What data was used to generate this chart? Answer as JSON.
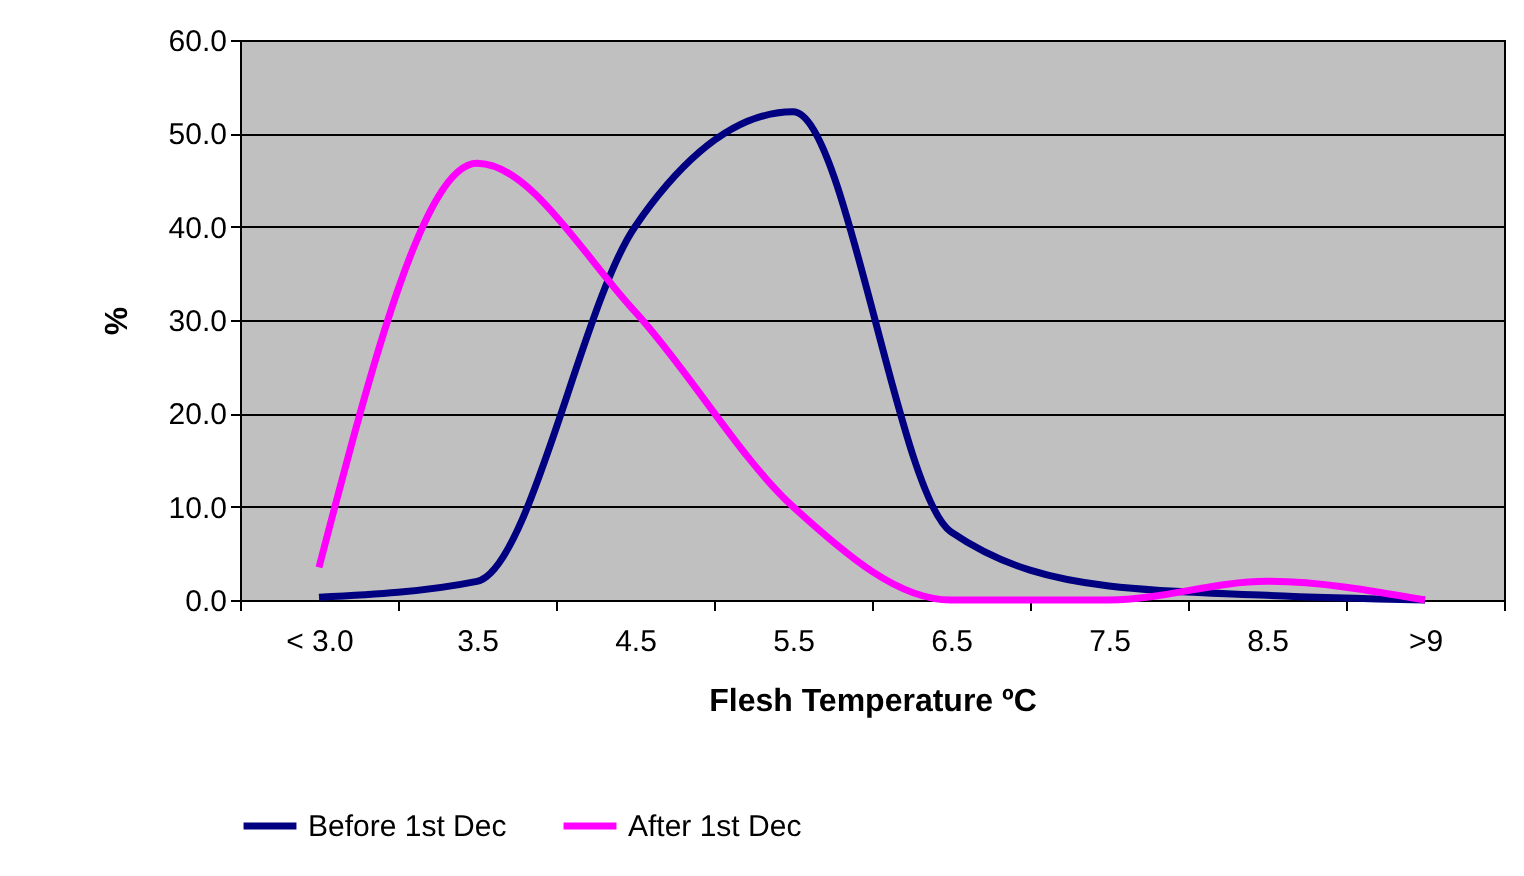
{
  "chart_data": {
    "type": "line",
    "xlabel": "Flesh Temperature ºC",
    "ylabel": "%",
    "categories": [
      "< 3.0",
      "3.5",
      "4.5",
      "5.5",
      "6.5",
      "7.5",
      "8.5",
      ">9"
    ],
    "series": [
      {
        "name": "Before 1st Dec",
        "color": "#000080",
        "values": [
          0.3,
          2.0,
          40.0,
          52.3,
          7.3,
          1.5,
          0.5,
          0.0
        ]
      },
      {
        "name": "After 1st Dec",
        "color": "#ff00ff",
        "values": [
          3.5,
          46.8,
          30.9,
          10.0,
          0.0,
          0.0,
          2.0,
          0.0
        ]
      }
    ],
    "ylim": [
      0,
      60
    ],
    "yticks": [
      {
        "value": 0,
        "label": "0.0"
      },
      {
        "value": 10,
        "label": "10.0"
      },
      {
        "value": 20,
        "label": "20.0"
      },
      {
        "value": 30,
        "label": "30.0"
      },
      {
        "value": 40,
        "label": "40.0"
      },
      {
        "value": 50,
        "label": "50.0"
      },
      {
        "value": 60,
        "label": "60.0"
      }
    ],
    "grid": "y",
    "legend": "bottom",
    "marker": "none",
    "line_style": "solid"
  }
}
